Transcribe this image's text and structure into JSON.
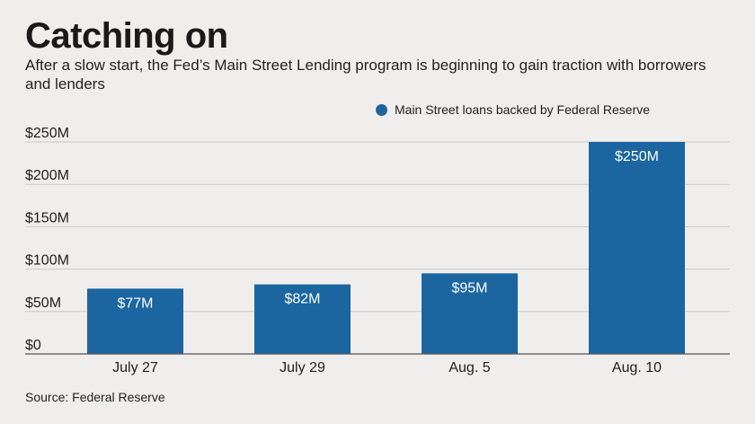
{
  "colors": {
    "bar": "#1b65a1",
    "grid": "#c9c9c9",
    "baseline": "#555555",
    "background": "#efeeec"
  },
  "chart_data": {
    "type": "bar",
    "title": "Catching on",
    "subtitle": "After a slow start, the Fed’s Main Street Lending program is beginning to gain traction with borrowers and lenders",
    "categories": [
      "July 27",
      "July 29",
      "Aug. 5",
      "Aug. 10"
    ],
    "series": [
      {
        "name": "Main Street loans backed by Federal Reserve",
        "values": [
          77,
          82,
          95,
          250
        ],
        "labels": [
          "$77M",
          "$82M",
          "$95M",
          "$250M"
        ]
      }
    ],
    "yticks": [
      0,
      50,
      100,
      150,
      200,
      250
    ],
    "ytick_labels": [
      "$0",
      "$50M",
      "$100M",
      "$150M",
      "$200M",
      "$250M"
    ],
    "ylim": [
      0,
      250
    ],
    "grid": true,
    "legend_position": "top-right",
    "source": "Source: Federal Reserve"
  }
}
